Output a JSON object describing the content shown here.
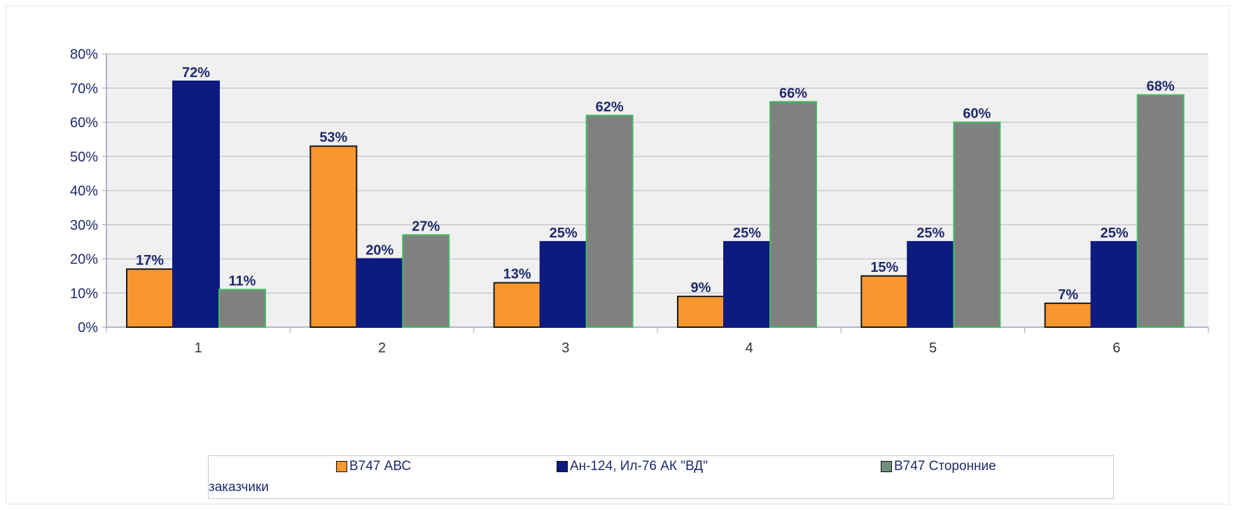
{
  "chart_data": {
    "type": "bar",
    "categories": [
      "1",
      "2",
      "3",
      "4",
      "5",
      "6"
    ],
    "series": [
      {
        "name": "B747 АВС",
        "color": "#f7972d",
        "values": [
          17,
          53,
          13,
          9,
          15,
          7
        ]
      },
      {
        "name": "Ан-124, Ил-76 АК \"ВД\"",
        "color": "#0d1a80",
        "values": [
          72,
          20,
          25,
          25,
          25,
          25
        ]
      },
      {
        "name": "B747 Сторонние заказчики",
        "color": "#808080",
        "values": [
          11,
          27,
          62,
          66,
          60,
          68
        ]
      }
    ],
    "value_labels": [
      [
        "17%",
        "53%",
        "13%",
        "9%",
        "15%",
        "7%"
      ],
      [
        "72%",
        "20%",
        "25%",
        "25%",
        "25%",
        "25%"
      ],
      [
        "11%",
        "27%",
        "62%",
        "66%",
        "60%",
        "68%"
      ]
    ],
    "y_ticks": [
      "0%",
      "10%",
      "20%",
      "30%",
      "40%",
      "50%",
      "60%",
      "70%",
      "80%"
    ],
    "ylim": [
      0,
      80
    ],
    "grid": true,
    "legend_position": "bottom",
    "title": "",
    "xlabel": "",
    "ylabel": ""
  },
  "legend": {
    "item1": "B747 АВС",
    "item2": "Ан-124, Ил-76 АК \"ВД\"",
    "item3": "B747 Сторонние",
    "item3_wrap": "заказчики"
  }
}
